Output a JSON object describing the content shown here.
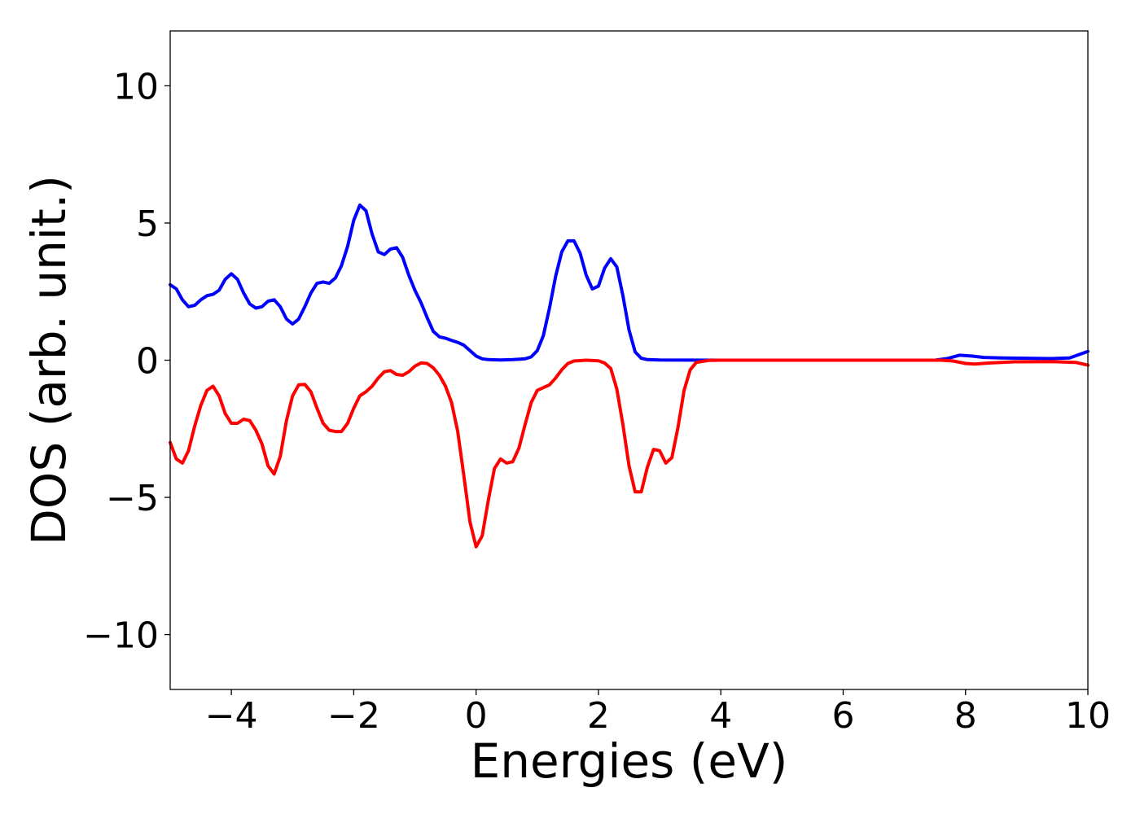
{
  "chart_data": {
    "type": "line",
    "title": "",
    "xlabel": "Energies (eV)",
    "ylabel": "DOS (arb. unit.)",
    "xlim": [
      -5,
      10
    ],
    "ylim": [
      -12,
      12
    ],
    "grid": false,
    "legend": "none",
    "xticks": [
      -4,
      -2,
      0,
      2,
      4,
      6,
      8,
      10
    ],
    "yticks": [
      -10,
      -5,
      0,
      5,
      10
    ],
    "xtick_labels": [
      "−4",
      "−2",
      "0",
      "2",
      "4",
      "6",
      "8",
      "10"
    ],
    "ytick_labels": [
      "−10",
      "−5",
      "0",
      "5",
      "10"
    ],
    "series": [
      {
        "color": "#0000ff",
        "points": [
          [
            -5.0,
            2.75
          ],
          [
            -4.9,
            2.6
          ],
          [
            -4.8,
            2.2
          ],
          [
            -4.7,
            1.95
          ],
          [
            -4.6,
            2.0
          ],
          [
            -4.5,
            2.2
          ],
          [
            -4.4,
            2.35
          ],
          [
            -4.3,
            2.4
          ],
          [
            -4.2,
            2.55
          ],
          [
            -4.1,
            2.95
          ],
          [
            -4.0,
            3.15
          ],
          [
            -3.9,
            2.95
          ],
          [
            -3.8,
            2.45
          ],
          [
            -3.7,
            2.05
          ],
          [
            -3.6,
            1.9
          ],
          [
            -3.5,
            1.95
          ],
          [
            -3.4,
            2.15
          ],
          [
            -3.3,
            2.2
          ],
          [
            -3.2,
            1.95
          ],
          [
            -3.1,
            1.5
          ],
          [
            -3.0,
            1.32
          ],
          [
            -2.9,
            1.5
          ],
          [
            -2.8,
            1.95
          ],
          [
            -2.7,
            2.45
          ],
          [
            -2.6,
            2.8
          ],
          [
            -2.5,
            2.85
          ],
          [
            -2.4,
            2.8
          ],
          [
            -2.3,
            3.0
          ],
          [
            -2.2,
            3.45
          ],
          [
            -2.1,
            4.15
          ],
          [
            -2.0,
            5.1
          ],
          [
            -1.9,
            5.65
          ],
          [
            -1.8,
            5.45
          ],
          [
            -1.7,
            4.6
          ],
          [
            -1.6,
            3.95
          ],
          [
            -1.5,
            3.85
          ],
          [
            -1.4,
            4.05
          ],
          [
            -1.3,
            4.1
          ],
          [
            -1.2,
            3.75
          ],
          [
            -1.1,
            3.1
          ],
          [
            -1.0,
            2.55
          ],
          [
            -0.9,
            2.1
          ],
          [
            -0.8,
            1.55
          ],
          [
            -0.7,
            1.05
          ],
          [
            -0.6,
            0.85
          ],
          [
            -0.5,
            0.8
          ],
          [
            -0.4,
            0.72
          ],
          [
            -0.3,
            0.65
          ],
          [
            -0.2,
            0.55
          ],
          [
            -0.1,
            0.35
          ],
          [
            0.0,
            0.15
          ],
          [
            0.1,
            0.05
          ],
          [
            0.2,
            0.02
          ],
          [
            0.4,
            0.01
          ],
          [
            0.6,
            0.02
          ],
          [
            0.8,
            0.05
          ],
          [
            0.9,
            0.12
          ],
          [
            1.0,
            0.35
          ],
          [
            1.1,
            0.9
          ],
          [
            1.2,
            1.9
          ],
          [
            1.3,
            3.05
          ],
          [
            1.4,
            3.95
          ],
          [
            1.5,
            4.35
          ],
          [
            1.6,
            4.35
          ],
          [
            1.7,
            3.9
          ],
          [
            1.8,
            3.1
          ],
          [
            1.9,
            2.6
          ],
          [
            2.0,
            2.7
          ],
          [
            2.1,
            3.35
          ],
          [
            2.2,
            3.7
          ],
          [
            2.3,
            3.4
          ],
          [
            2.4,
            2.35
          ],
          [
            2.5,
            1.1
          ],
          [
            2.6,
            0.3
          ],
          [
            2.7,
            0.07
          ],
          [
            2.8,
            0.02
          ],
          [
            3.0,
            0.01
          ],
          [
            4.0,
            0.0
          ],
          [
            6.0,
            0.0
          ],
          [
            7.5,
            0.0
          ],
          [
            7.7,
            0.06
          ],
          [
            7.9,
            0.18
          ],
          [
            8.1,
            0.15
          ],
          [
            8.3,
            0.1
          ],
          [
            8.6,
            0.08
          ],
          [
            9.0,
            0.07
          ],
          [
            9.4,
            0.06
          ],
          [
            9.7,
            0.08
          ],
          [
            9.85,
            0.2
          ],
          [
            10.0,
            0.32
          ]
        ]
      },
      {
        "color": "#ff0000",
        "points": [
          [
            -5.0,
            -3.0
          ],
          [
            -4.9,
            -3.6
          ],
          [
            -4.8,
            -3.75
          ],
          [
            -4.7,
            -3.3
          ],
          [
            -4.6,
            -2.4
          ],
          [
            -4.5,
            -1.65
          ],
          [
            -4.4,
            -1.1
          ],
          [
            -4.3,
            -0.95
          ],
          [
            -4.2,
            -1.3
          ],
          [
            -4.1,
            -1.95
          ],
          [
            -4.0,
            -2.3
          ],
          [
            -3.9,
            -2.3
          ],
          [
            -3.8,
            -2.15
          ],
          [
            -3.7,
            -2.2
          ],
          [
            -3.6,
            -2.55
          ],
          [
            -3.5,
            -3.05
          ],
          [
            -3.4,
            -3.85
          ],
          [
            -3.3,
            -4.15
          ],
          [
            -3.2,
            -3.5
          ],
          [
            -3.1,
            -2.2
          ],
          [
            -3.0,
            -1.3
          ],
          [
            -2.9,
            -0.9
          ],
          [
            -2.8,
            -0.88
          ],
          [
            -2.7,
            -1.15
          ],
          [
            -2.6,
            -1.75
          ],
          [
            -2.5,
            -2.3
          ],
          [
            -2.4,
            -2.55
          ],
          [
            -2.3,
            -2.6
          ],
          [
            -2.2,
            -2.6
          ],
          [
            -2.1,
            -2.3
          ],
          [
            -2.0,
            -1.75
          ],
          [
            -1.9,
            -1.3
          ],
          [
            -1.8,
            -1.15
          ],
          [
            -1.7,
            -0.95
          ],
          [
            -1.6,
            -0.65
          ],
          [
            -1.5,
            -0.42
          ],
          [
            -1.4,
            -0.38
          ],
          [
            -1.3,
            -0.52
          ],
          [
            -1.2,
            -0.55
          ],
          [
            -1.1,
            -0.42
          ],
          [
            -1.0,
            -0.22
          ],
          [
            -0.9,
            -0.1
          ],
          [
            -0.8,
            -0.12
          ],
          [
            -0.7,
            -0.28
          ],
          [
            -0.6,
            -0.55
          ],
          [
            -0.5,
            -0.95
          ],
          [
            -0.4,
            -1.55
          ],
          [
            -0.3,
            -2.6
          ],
          [
            -0.2,
            -4.2
          ],
          [
            -0.1,
            -5.9
          ],
          [
            0.0,
            -6.8
          ],
          [
            0.1,
            -6.4
          ],
          [
            0.2,
            -5.1
          ],
          [
            0.3,
            -3.95
          ],
          [
            0.4,
            -3.6
          ],
          [
            0.5,
            -3.75
          ],
          [
            0.6,
            -3.7
          ],
          [
            0.7,
            -3.2
          ],
          [
            0.8,
            -2.35
          ],
          [
            0.9,
            -1.55
          ],
          [
            1.0,
            -1.1
          ],
          [
            1.1,
            -1.0
          ],
          [
            1.2,
            -0.9
          ],
          [
            1.3,
            -0.65
          ],
          [
            1.4,
            -0.35
          ],
          [
            1.5,
            -0.12
          ],
          [
            1.6,
            -0.03
          ],
          [
            1.8,
            -0.0
          ],
          [
            2.0,
            -0.02
          ],
          [
            2.1,
            -0.1
          ],
          [
            2.2,
            -0.3
          ],
          [
            2.3,
            -1.05
          ],
          [
            2.4,
            -2.35
          ],
          [
            2.5,
            -3.85
          ],
          [
            2.6,
            -4.8
          ],
          [
            2.7,
            -4.8
          ],
          [
            2.8,
            -3.9
          ],
          [
            2.9,
            -3.25
          ],
          [
            3.0,
            -3.3
          ],
          [
            3.1,
            -3.75
          ],
          [
            3.2,
            -3.55
          ],
          [
            3.3,
            -2.45
          ],
          [
            3.4,
            -1.1
          ],
          [
            3.5,
            -0.35
          ],
          [
            3.6,
            -0.08
          ],
          [
            3.8,
            -0.01
          ],
          [
            4.0,
            0.0
          ],
          [
            6.0,
            0.0
          ],
          [
            7.6,
            0.0
          ],
          [
            7.8,
            -0.03
          ],
          [
            8.0,
            -0.12
          ],
          [
            8.15,
            -0.14
          ],
          [
            8.4,
            -0.1
          ],
          [
            8.8,
            -0.06
          ],
          [
            9.4,
            -0.05
          ],
          [
            9.8,
            -0.08
          ],
          [
            10.0,
            -0.18
          ]
        ]
      }
    ]
  }
}
